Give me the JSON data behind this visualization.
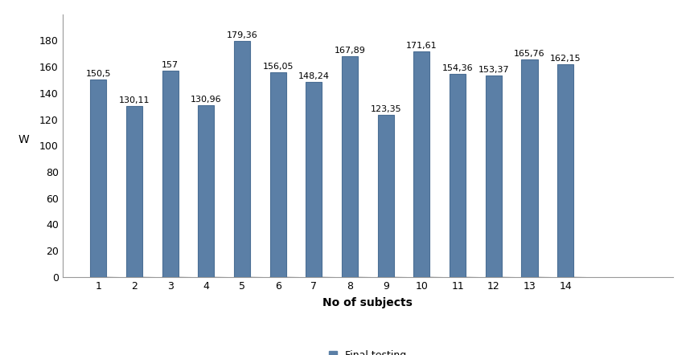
{
  "categories": [
    "1",
    "2",
    "3",
    "4",
    "5",
    "6",
    "7",
    "8",
    "9",
    "10",
    "11",
    "12",
    "13",
    "14"
  ],
  "values": [
    150.5,
    130.11,
    157,
    130.96,
    179.36,
    156.05,
    148.24,
    167.89,
    123.35,
    171.61,
    154.36,
    153.37,
    165.76,
    162.15
  ],
  "labels": [
    "150,5",
    "130,11",
    "157",
    "130,96",
    "179,36",
    "156,05",
    "148,24",
    "167,89",
    "123,35",
    "171,61",
    "154,36",
    "153,37",
    "165,76",
    "162,15"
  ],
  "bar_color": "#5B7FA6",
  "bar_edge_color": "#4A6E94",
  "xlabel": "No of subjects",
  "ylabel": "W",
  "ylim": [
    0,
    200
  ],
  "yticks": [
    0,
    20,
    40,
    60,
    80,
    100,
    120,
    140,
    160,
    180
  ],
  "legend_label": "Final testing",
  "legend_color": "#5B7FA6",
  "xlabel_fontsize": 10,
  "ylabel_fontsize": 10,
  "tick_fontsize": 9,
  "label_fontsize": 8,
  "background_color": "#ffffff",
  "spine_color": "#999999"
}
